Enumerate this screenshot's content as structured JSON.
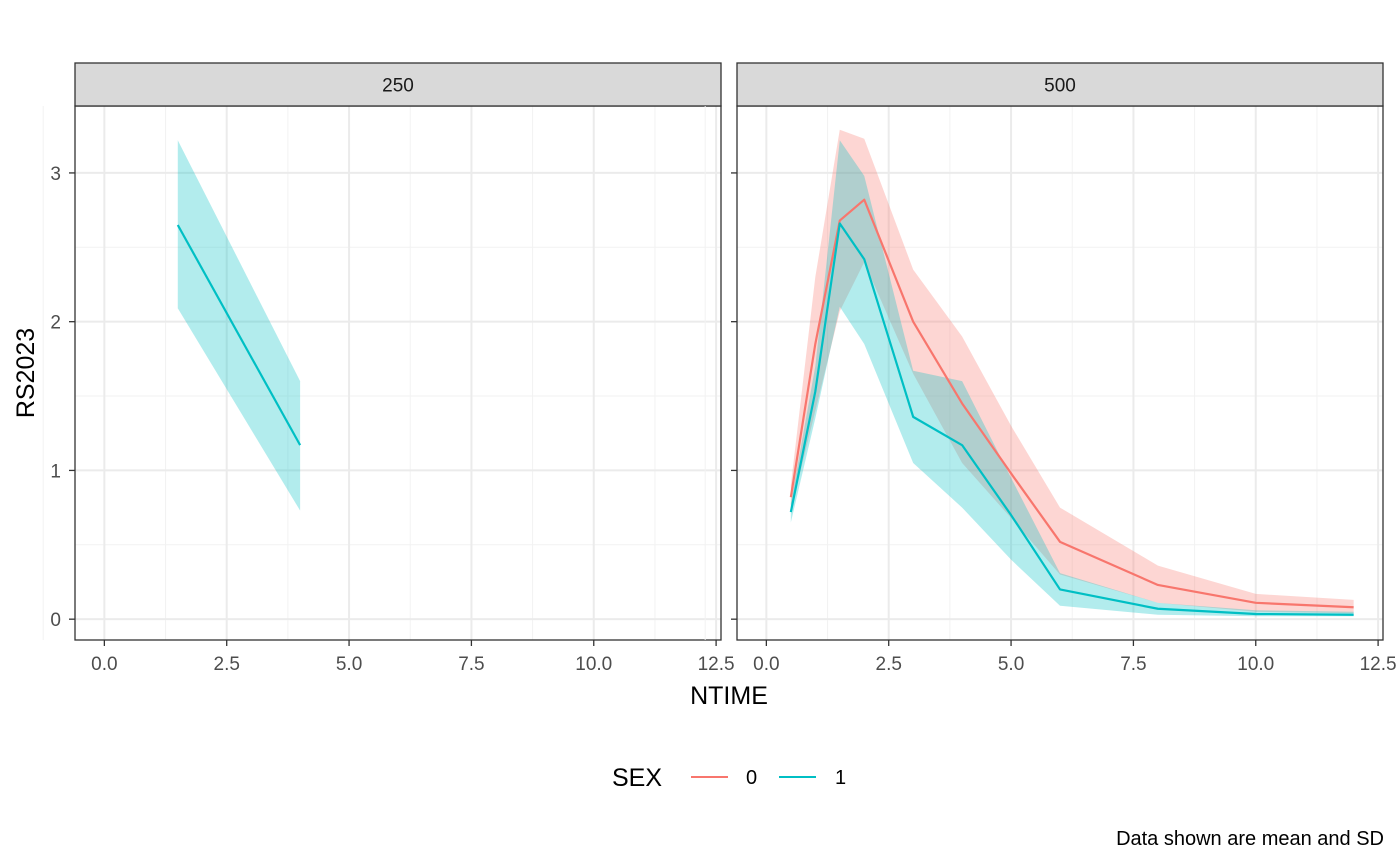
{
  "chart_data": {
    "type": "line",
    "facet_variable": "DOSE",
    "xlabel": "NTIME",
    "ylabel": "RS2023",
    "xlim": [
      -0.6,
      12.6
    ],
    "ylim": [
      -0.14,
      3.45
    ],
    "x_ticks": [
      0,
      2.5,
      5,
      7.5,
      10,
      12.5
    ],
    "x_tick_labels": [
      "0.0",
      "2.5",
      "5.0",
      "7.5",
      "10.0",
      "12.5"
    ],
    "y_ticks": [
      0,
      1,
      2,
      3
    ],
    "y_tick_labels": [
      "0",
      "1",
      "2",
      "3"
    ],
    "grid": true,
    "legend": {
      "title": "SEX",
      "position": "bottom",
      "entries": [
        {
          "label": "0",
          "color": "#F8766D"
        },
        {
          "label": "1",
          "color": "#00BFC4"
        }
      ]
    },
    "caption": "Data shown are mean and SD",
    "panels": [
      {
        "strip": "250",
        "series": [
          {
            "name": "1",
            "color": "#00BFC4",
            "x": [
              1.5,
              4
            ],
            "mean": [
              2.65,
              1.17
            ],
            "lower": [
              2.09,
              0.73
            ],
            "upper": [
              3.22,
              1.6
            ]
          }
        ]
      },
      {
        "strip": "500",
        "series": [
          {
            "name": "0",
            "color": "#F8766D",
            "x": [
              0.5,
              1,
              1.5,
              2,
              3,
              4,
              5,
              6,
              8,
              10,
              12
            ],
            "mean": [
              0.82,
              1.85,
              2.68,
              2.82,
              2.0,
              1.45,
              0.98,
              0.52,
              0.23,
              0.11,
              0.08
            ],
            "lower": [
              0.73,
              1.4,
              2.07,
              2.4,
              1.65,
              1.05,
              0.68,
              0.3,
              0.11,
              0.05,
              0.04
            ],
            "upper": [
              0.9,
              2.3,
              3.29,
              3.23,
              2.35,
              1.9,
              1.3,
              0.75,
              0.36,
              0.17,
              0.13
            ]
          },
          {
            "name": "1",
            "color": "#00BFC4",
            "x": [
              0.5,
              1,
              1.5,
              2,
              3,
              4,
              5,
              6,
              8,
              10,
              12
            ],
            "mean": [
              0.72,
              1.53,
              2.66,
              2.42,
              1.36,
              1.17,
              0.7,
              0.2,
              0.07,
              0.035,
              0.03
            ],
            "lower": [
              0.65,
              1.35,
              2.1,
              1.85,
              1.05,
              0.75,
              0.4,
              0.09,
              0.03,
              0.02,
              0.02
            ],
            "upper": [
              0.78,
              1.7,
              3.22,
              2.98,
              1.67,
              1.6,
              0.95,
              0.31,
              0.11,
              0.06,
              0.05
            ]
          }
        ]
      }
    ]
  }
}
